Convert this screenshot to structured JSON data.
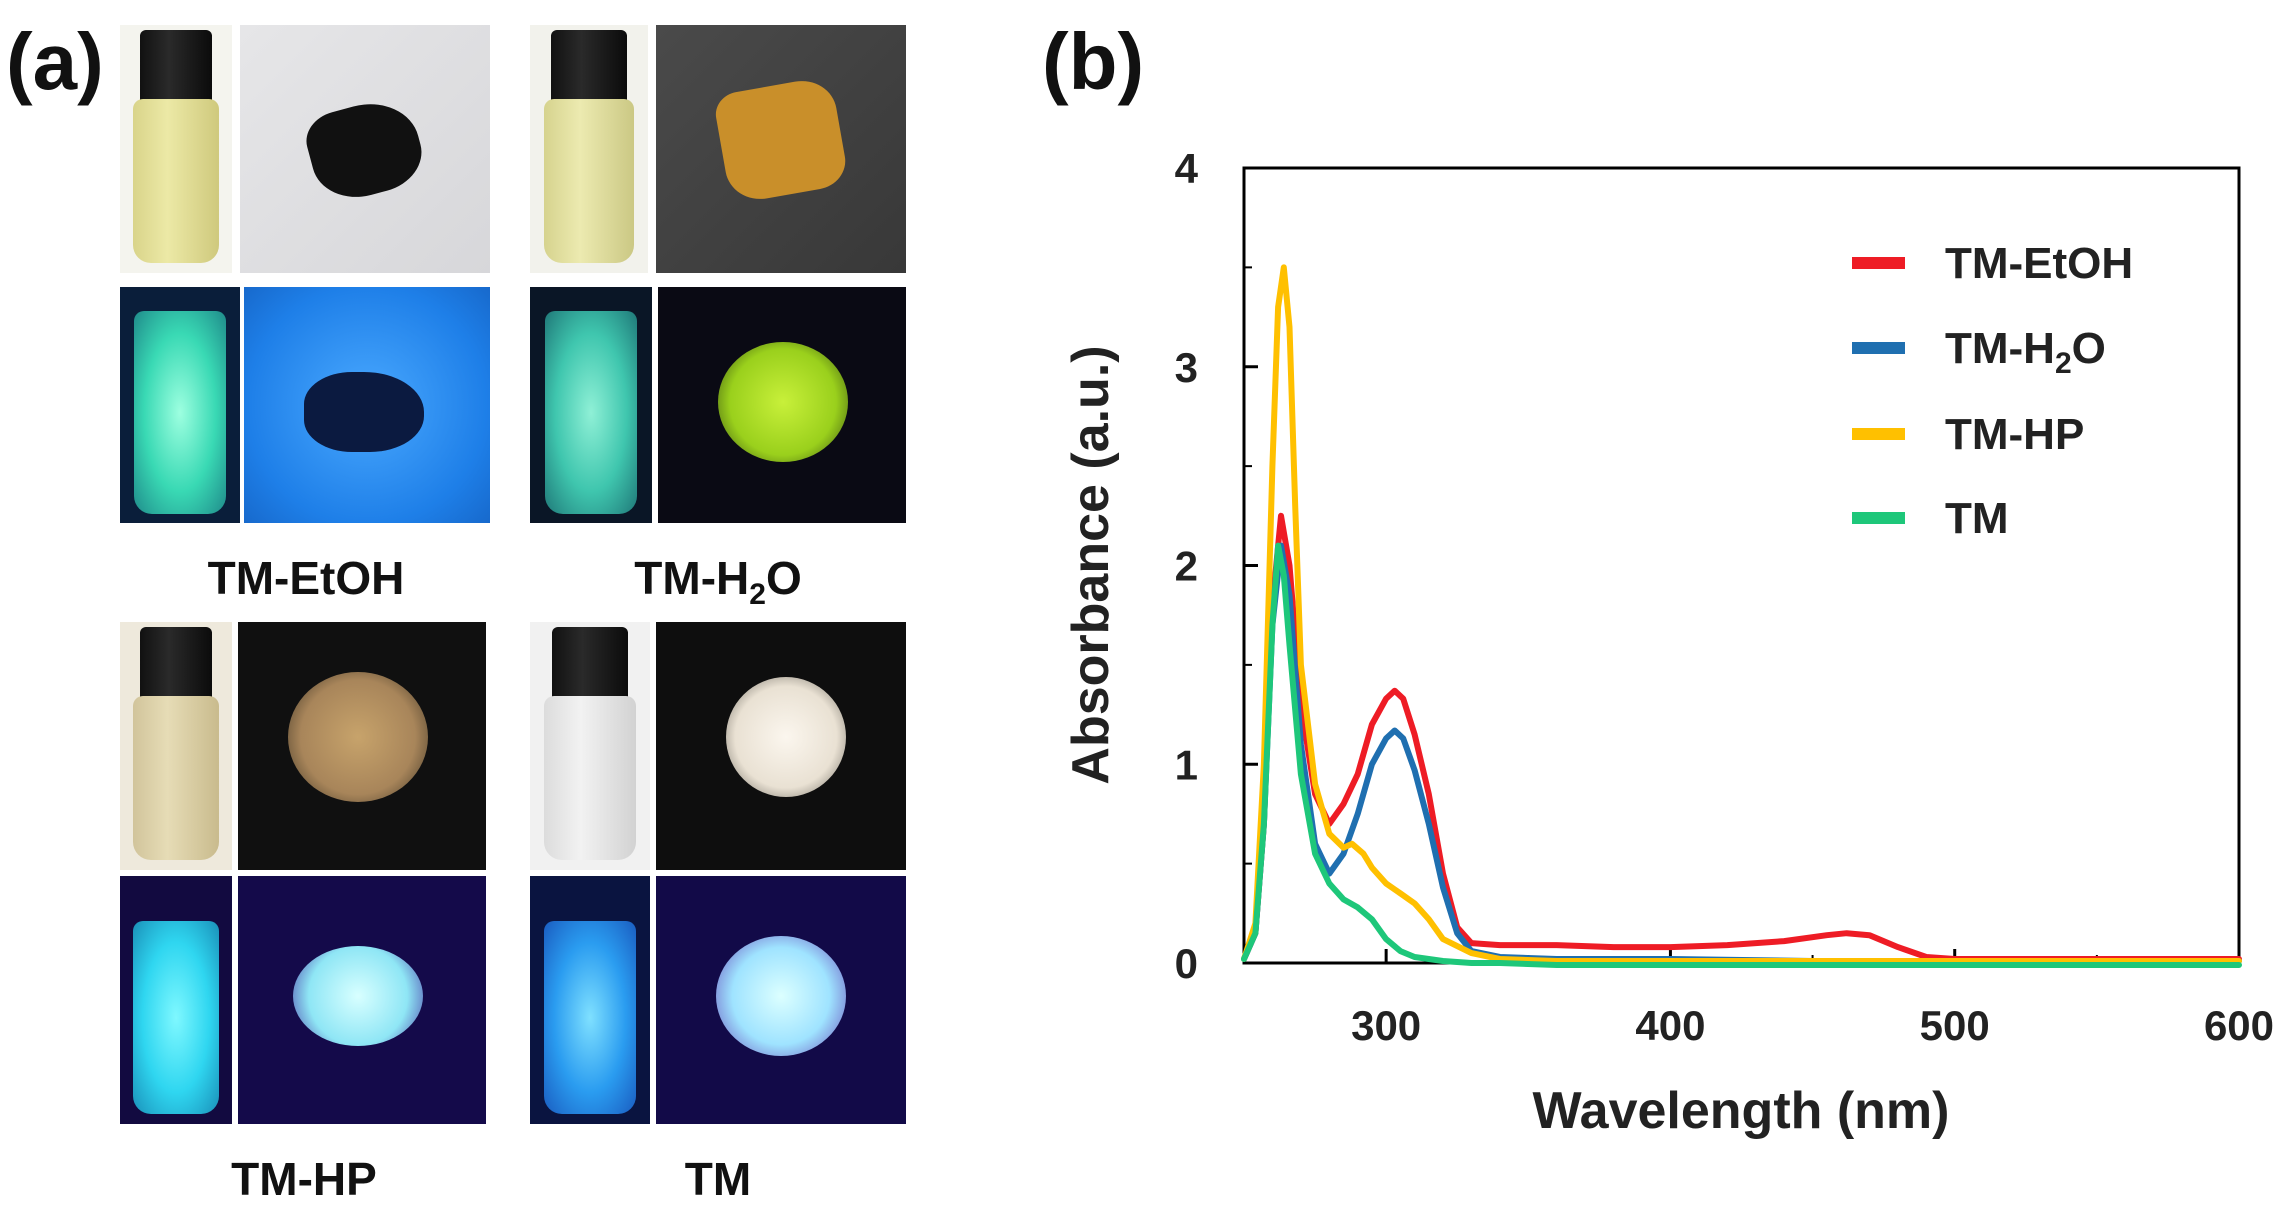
{
  "panels": {
    "a_label": "(a)",
    "b_label": "(b)"
  },
  "samples": [
    {
      "name": "TM-EtOH",
      "sub": ""
    },
    {
      "name": "TM-H",
      "sub": "2",
      "tail": "O"
    },
    {
      "name": "TM-HP",
      "sub": ""
    },
    {
      "name": "TM",
      "sub": ""
    }
  ],
  "photo_icons": [
    "vial-daylight-icon",
    "solid-daylight-icon",
    "vial-uv-icon",
    "solid-uv-icon"
  ],
  "chart_data": {
    "type": "line",
    "title": "",
    "xlabel": "Wavelength (nm)",
    "ylabel": "Absorbance (a.u.)",
    "xlim": [
      250,
      600
    ],
    "ylim": [
      0,
      4
    ],
    "xticks": [
      300,
      400,
      500,
      600
    ],
    "yticks": [
      0,
      1,
      2,
      3,
      4
    ],
    "legend_position": "top-right",
    "series": [
      {
        "name": "TM-EtOH",
        "color": "#ee1c25",
        "x": [
          250,
          254,
          257,
          260,
          263,
          266,
          270,
          275,
          280,
          285,
          290,
          295,
          300,
          303,
          306,
          310,
          315,
          320,
          325,
          330,
          340,
          360,
          380,
          400,
          420,
          440,
          455,
          462,
          470,
          480,
          490,
          500,
          550,
          600
        ],
        "y": [
          0.02,
          0.15,
          0.7,
          1.8,
          2.25,
          2.0,
          1.3,
          0.85,
          0.7,
          0.8,
          0.95,
          1.2,
          1.33,
          1.37,
          1.33,
          1.15,
          0.85,
          0.45,
          0.18,
          0.1,
          0.09,
          0.09,
          0.08,
          0.08,
          0.09,
          0.11,
          0.14,
          0.15,
          0.14,
          0.08,
          0.03,
          0.02,
          0.02,
          0.02
        ]
      },
      {
        "name": "TM-H2O",
        "color": "#1f6fb0",
        "x": [
          250,
          254,
          257,
          260,
          263,
          266,
          270,
          275,
          280,
          285,
          290,
          295,
          300,
          303,
          306,
          310,
          315,
          320,
          325,
          330,
          340,
          360,
          400,
          450,
          500,
          550,
          600
        ],
        "y": [
          0.02,
          0.15,
          0.7,
          1.7,
          2.1,
          1.85,
          1.1,
          0.6,
          0.45,
          0.55,
          0.75,
          1.0,
          1.13,
          1.17,
          1.13,
          0.97,
          0.7,
          0.38,
          0.15,
          0.06,
          0.03,
          0.02,
          0.02,
          0.01,
          0.01,
          0.01,
          0.01
        ]
      },
      {
        "name": "TM-HP",
        "color": "#ffc000",
        "x": [
          250,
          254,
          257,
          260,
          262,
          264,
          266,
          268,
          270,
          275,
          280,
          285,
          288,
          292,
          295,
          300,
          305,
          310,
          315,
          320,
          330,
          340,
          360,
          400,
          450,
          500,
          550,
          600
        ],
        "y": [
          0.02,
          0.2,
          1.0,
          2.5,
          3.3,
          3.5,
          3.2,
          2.3,
          1.5,
          0.9,
          0.65,
          0.58,
          0.6,
          0.55,
          0.48,
          0.4,
          0.35,
          0.3,
          0.22,
          0.12,
          0.05,
          0.02,
          0.01,
          0.01,
          0.01,
          0.01,
          0.01,
          0.01
        ]
      },
      {
        "name": "TM",
        "color": "#1ec77a",
        "x": [
          250,
          254,
          257,
          260,
          262,
          264,
          266,
          270,
          275,
          280,
          285,
          290,
          295,
          300,
          305,
          310,
          320,
          330,
          340,
          360,
          400,
          500,
          600
        ],
        "y": [
          0.02,
          0.15,
          0.7,
          1.7,
          2.1,
          1.95,
          1.6,
          0.95,
          0.55,
          0.4,
          0.32,
          0.28,
          0.22,
          0.12,
          0.06,
          0.03,
          0.01,
          0.0,
          0.0,
          -0.01,
          -0.01,
          -0.01,
          -0.01
        ]
      }
    ]
  }
}
